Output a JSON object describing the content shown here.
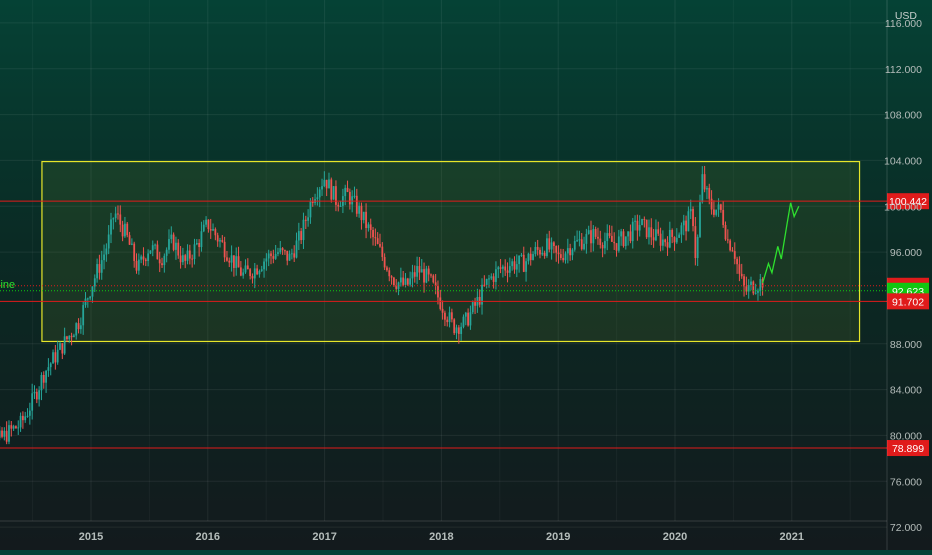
{
  "chart_data": {
    "type": "candlestick",
    "currency_label": "USD",
    "x_ticks": [
      "2015",
      "2016",
      "2017",
      "2018",
      "2019",
      "2020",
      "2021"
    ],
    "y_ticks": [
      "116.000",
      "112.000",
      "108.000",
      "104.000",
      "100.000",
      "96.000",
      "88.000",
      "84.000",
      "80.000",
      "76.000",
      "72.000"
    ],
    "ylim": [
      70.0,
      118.0
    ],
    "range_box": {
      "from": 2014.58,
      "to": 2021.58,
      "low": 88.2,
      "high": 103.9
    },
    "horizontal_lines": [
      {
        "value": 100.442,
        "label": "100.442",
        "color": "#e01b1b"
      },
      {
        "value": 91.702,
        "label": "91.702",
        "color": "#e01b1b"
      },
      {
        "value": 78.899,
        "label": "78.899",
        "color": "#e01b1b"
      }
    ],
    "dotted_lines": [
      {
        "value": 93.06,
        "label": "93.060",
        "color": "#e01b1b"
      },
      {
        "value": 92.623,
        "label": "92.623",
        "color": "#11c711"
      }
    ],
    "left_edge_label": "line",
    "price_path": [
      [
        2014.0,
        80.1
      ],
      [
        2014.1,
        80.6
      ],
      [
        2014.2,
        79.5
      ],
      [
        2014.3,
        80.3
      ],
      [
        2014.4,
        81.0
      ],
      [
        2014.5,
        83.0
      ],
      [
        2014.6,
        85.5
      ],
      [
        2014.7,
        87.0
      ],
      [
        2014.8,
        88.5
      ],
      [
        2014.9,
        90.0
      ],
      [
        2015.0,
        93.0
      ],
      [
        2015.1,
        95.5
      ],
      [
        2015.15,
        97.0
      ],
      [
        2015.2,
        99.5
      ],
      [
        2015.3,
        97.5
      ],
      [
        2015.4,
        94.5
      ],
      [
        2015.5,
        96.5
      ],
      [
        2015.6,
        95.5
      ],
      [
        2015.7,
        97.0
      ],
      [
        2015.8,
        95.0
      ],
      [
        2015.9,
        96.5
      ],
      [
        2016.0,
        98.5
      ],
      [
        2016.1,
        97.0
      ],
      [
        2016.2,
        95.5
      ],
      [
        2016.3,
        94.0
      ],
      [
        2016.4,
        94.5
      ],
      [
        2016.5,
        95.5
      ],
      [
        2016.6,
        96.0
      ],
      [
        2016.7,
        95.5
      ],
      [
        2016.8,
        97.5
      ],
      [
        2016.9,
        101.0
      ],
      [
        2017.0,
        102.5
      ],
      [
        2017.1,
        100.5
      ],
      [
        2017.2,
        101.0
      ],
      [
        2017.3,
        99.5
      ],
      [
        2017.4,
        97.5
      ],
      [
        2017.5,
        95.5
      ],
      [
        2017.6,
        93.5
      ],
      [
        2017.7,
        93.0
      ],
      [
        2017.8,
        94.5
      ],
      [
        2017.9,
        93.5
      ],
      [
        2018.0,
        91.5
      ],
      [
        2018.1,
        89.5
      ],
      [
        2018.2,
        89.8
      ],
      [
        2018.3,
        91.5
      ],
      [
        2018.4,
        93.5
      ],
      [
        2018.5,
        94.5
      ],
      [
        2018.6,
        95.0
      ],
      [
        2018.7,
        95.0
      ],
      [
        2018.8,
        96.0
      ],
      [
        2018.9,
        96.5
      ],
      [
        2019.0,
        95.5
      ],
      [
        2019.1,
        96.5
      ],
      [
        2019.2,
        97.0
      ],
      [
        2019.3,
        97.5
      ],
      [
        2019.4,
        97.0
      ],
      [
        2019.5,
        96.8
      ],
      [
        2019.6,
        97.5
      ],
      [
        2019.7,
        98.5
      ],
      [
        2019.8,
        97.5
      ],
      [
        2019.9,
        97.0
      ],
      [
        2020.0,
        97.5
      ],
      [
        2020.1,
        98.5
      ],
      [
        2020.15,
        99.5
      ],
      [
        2020.18,
        95.0
      ],
      [
        2020.23,
        102.5
      ],
      [
        2020.3,
        100.0
      ],
      [
        2020.4,
        99.5
      ],
      [
        2020.45,
        97.0
      ],
      [
        2020.5,
        96.5
      ],
      [
        2020.55,
        94.0
      ],
      [
        2020.6,
        92.5
      ],
      [
        2020.65,
        93.0
      ],
      [
        2020.7,
        93.2
      ],
      [
        2020.75,
        93.5
      ]
    ],
    "projection_path": [
      [
        2020.75,
        93.3
      ],
      [
        2020.8,
        95.0
      ],
      [
        2020.83,
        94.2
      ],
      [
        2020.88,
        96.5
      ],
      [
        2020.91,
        95.4
      ],
      [
        2020.96,
        98.5
      ],
      [
        2020.99,
        100.3
      ],
      [
        2021.02,
        99.1
      ],
      [
        2021.06,
        100.0
      ]
    ]
  }
}
